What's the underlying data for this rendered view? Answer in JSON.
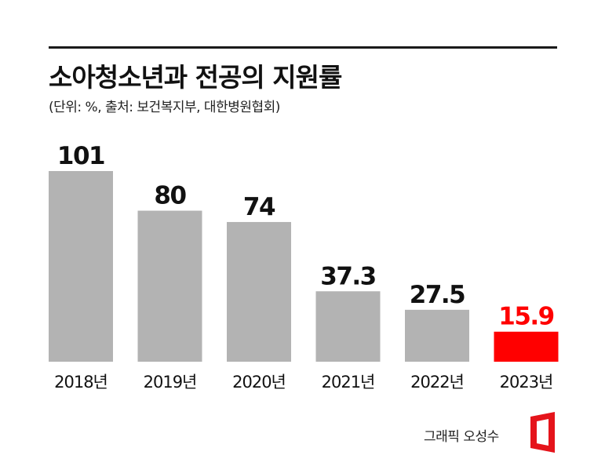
{
  "header": {
    "title": "소아청소년과 전공의 지원률",
    "subtitle": "(단위: %, 출처: 보건복지부, 대한병원협회)"
  },
  "chart_data": {
    "type": "bar",
    "categories": [
      "2018년",
      "2019년",
      "2020년",
      "2021년",
      "2022년",
      "2023년"
    ],
    "values": [
      101,
      80,
      74,
      37.3,
      27.5,
      15.9
    ],
    "value_labels": [
      "101",
      "80",
      "74",
      "37.3",
      "27.5",
      "15.9"
    ],
    "highlight_index": 5,
    "ylim": [
      0,
      101
    ],
    "grid": false,
    "colors": {
      "bar": "#b3b3b3",
      "highlight": "#ff0000",
      "label": "#111111",
      "highlight_label": "#ff0000"
    }
  },
  "footer": {
    "credit": "그래픽 오성수",
    "logo_icon": "red-bracket-logo-icon"
  }
}
